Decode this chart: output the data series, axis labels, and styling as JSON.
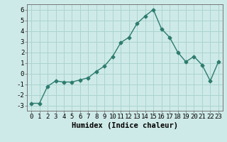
{
  "x": [
    0,
    1,
    2,
    3,
    4,
    5,
    6,
    7,
    8,
    9,
    10,
    11,
    12,
    13,
    14,
    15,
    16,
    17,
    18,
    19,
    20,
    21,
    22,
    23
  ],
  "y": [
    -2.8,
    -2.8,
    -1.2,
    -0.7,
    -0.8,
    -0.8,
    -0.6,
    -0.4,
    0.2,
    0.7,
    1.6,
    2.9,
    3.4,
    4.7,
    5.4,
    6.0,
    4.2,
    3.4,
    2.0,
    1.1,
    1.6,
    0.8,
    -0.7,
    1.1
  ],
  "line_color": "#2d7c6e",
  "marker": "D",
  "markersize": 2.5,
  "linewidth": 1.0,
  "bg_color": "#ceeae8",
  "grid_color": "#aad4d0",
  "xlabel": "Humidex (Indice chaleur)",
  "xlim": [
    -0.5,
    23.5
  ],
  "ylim": [
    -3.5,
    6.5
  ],
  "yticks": [
    -3,
    -2,
    -1,
    0,
    1,
    2,
    3,
    4,
    5,
    6
  ],
  "xticks": [
    0,
    1,
    2,
    3,
    4,
    5,
    6,
    7,
    8,
    9,
    10,
    11,
    12,
    13,
    14,
    15,
    16,
    17,
    18,
    19,
    20,
    21,
    22,
    23
  ],
  "tick_fontsize": 6.5,
  "xlabel_fontsize": 7.5
}
